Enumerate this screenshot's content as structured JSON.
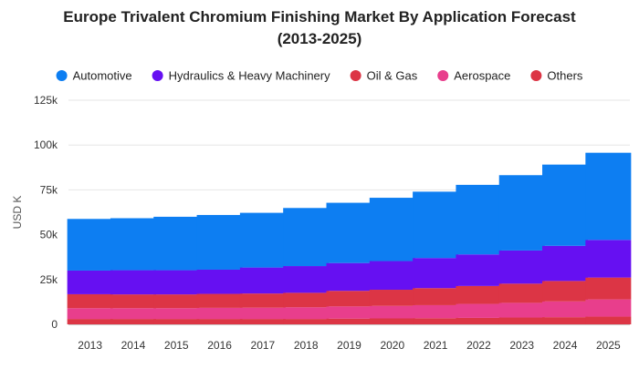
{
  "chart_data": {
    "type": "bar",
    "stacked": true,
    "title_lines": [
      "Europe Trivalent Chromium Finishing Market By Application Forecast",
      "(2013-2025)"
    ],
    "xlabel": "",
    "ylabel": "USD K",
    "ylim": [
      0,
      125000
    ],
    "yticks": [
      0,
      25000,
      50000,
      75000,
      100000,
      125000
    ],
    "ytick_labels": [
      "0",
      "25k",
      "50k",
      "75k",
      "100k",
      "125k"
    ],
    "grid": true,
    "legend_position": "top",
    "categories": [
      "2013",
      "2014",
      "2015",
      "2016",
      "2017",
      "2018",
      "2019",
      "2020",
      "2021",
      "2022",
      "2023",
      "2024",
      "2025"
    ],
    "series": [
      {
        "name": "Others",
        "color": "#dc3545",
        "values": [
          3000,
          3000,
          3000,
          3000,
          3000,
          3000,
          3200,
          3300,
          3400,
          3600,
          3800,
          4000,
          4300
        ]
      },
      {
        "name": "Aerospace",
        "color": "#e83e8c",
        "values": [
          6000,
          6000,
          6000,
          6200,
          6300,
          6500,
          6800,
          7000,
          7300,
          7800,
          8200,
          8800,
          9600
        ]
      },
      {
        "name": "Oil & Gas",
        "color": "#dc3545",
        "values": [
          7800,
          7700,
          7700,
          7800,
          7900,
          8100,
          8700,
          9000,
          9500,
          10000,
          10700,
          11400,
          12200
        ]
      },
      {
        "name": "Hydraulics & Heavy Machinery",
        "color": "#6610f2",
        "values": [
          13200,
          13500,
          13500,
          13500,
          14500,
          14900,
          15500,
          16000,
          16800,
          17600,
          18500,
          19600,
          21000
        ]
      },
      {
        "name": "Automotive",
        "color": "#0d7ef2",
        "values": [
          28800,
          29000,
          29800,
          30500,
          30500,
          32400,
          33600,
          35300,
          37000,
          38800,
          42000,
          45300,
          48600
        ]
      }
    ],
    "legend_order": [
      "Automotive",
      "Hydraulics & Heavy Machinery",
      "Oil & Gas",
      "Aerospace",
      "Others"
    ]
  }
}
